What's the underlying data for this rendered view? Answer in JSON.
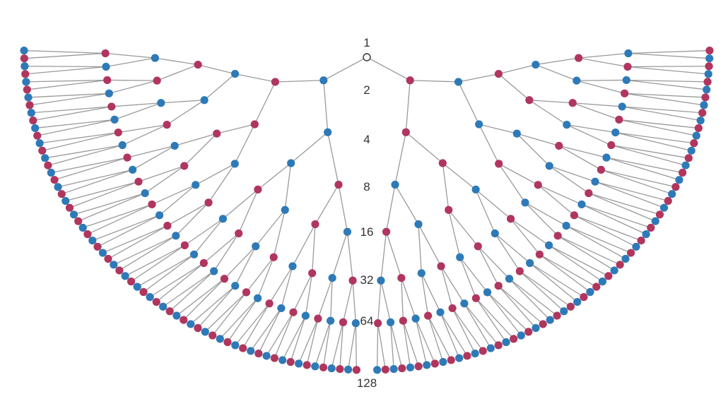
{
  "diagram": {
    "type": "binary-tree-fan",
    "level_labels": [
      "1",
      "2",
      "4",
      "8",
      "16",
      "32",
      "64",
      "128"
    ],
    "colors": {
      "pink": "#b0365e",
      "blue": "#2e7ab8",
      "edge": "#9a9a9a",
      "root_fill": "#ffffff",
      "root_stroke": "#333333"
    }
  }
}
